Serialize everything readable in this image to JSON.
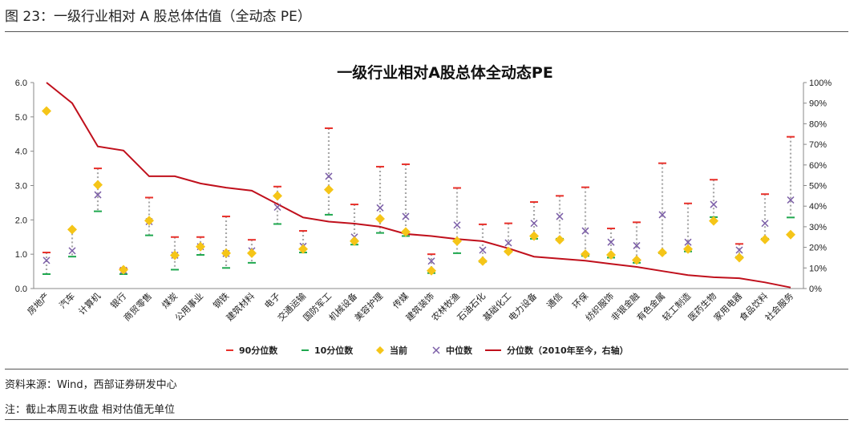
{
  "figure": {
    "label": "图 23：一级行业相对 A 股总体估值（全动态 PE）",
    "source": "资料来源：Wind，西部证券研发中心",
    "note": "注：截止本周五收盘 相对估值无单位"
  },
  "colors": {
    "p90": "#e8302a",
    "p10": "#1fa84f",
    "current": "#f5c518",
    "median": "#7b5ea7",
    "percentile_line": "#c0101c",
    "whisker": "#a8a8a8"
  },
  "chart_data": {
    "type": "scatter",
    "title": "一级行业相对A股总体全动态PE",
    "categories": [
      "房地产",
      "汽车",
      "计算机",
      "银行",
      "商贸零售",
      "煤炭",
      "公用事业",
      "钢铁",
      "建筑材料",
      "电子",
      "交通运输",
      "国防军工",
      "机械设备",
      "美容护理",
      "传媒",
      "建筑装饰",
      "农林牧渔",
      "石油石化",
      "基础化工",
      "电力设备",
      "通信",
      "环保",
      "纺织服饰",
      "非银金融",
      "有色金属",
      "轻工制造",
      "医药生物",
      "家用电器",
      "食品饮料",
      "社会服务"
    ],
    "y_left": {
      "min": 0,
      "max": 6,
      "ticks": [
        "0.0",
        "1.0",
        "2.0",
        "3.0",
        "4.0",
        "5.0",
        "6.0"
      ]
    },
    "y_right": {
      "min": 0,
      "max": 100,
      "ticks": [
        "0%",
        "10%",
        "20%",
        "30%",
        "40%",
        "50%",
        "60%",
        "70%",
        "80%",
        "90%",
        "100%"
      ]
    },
    "legend_position": "bottom",
    "series": [
      {
        "name": "90分位数",
        "axis": "left",
        "marker": "dash",
        "values": [
          1.05,
          1.72,
          3.5,
          0.58,
          2.65,
          1.5,
          1.5,
          2.1,
          1.42,
          2.97,
          1.68,
          4.67,
          2.45,
          3.55,
          3.62,
          1.0,
          2.93,
          1.87,
          1.9,
          2.52,
          2.7,
          2.95,
          1.75,
          1.93,
          3.65,
          2.48,
          3.17,
          1.3,
          2.75,
          4.42
        ]
      },
      {
        "name": "10分位数",
        "axis": "left",
        "marker": "dash",
        "values": [
          0.42,
          0.93,
          2.25,
          0.42,
          1.55,
          0.55,
          0.98,
          0.6,
          0.75,
          1.88,
          1.05,
          2.15,
          1.28,
          1.62,
          1.53,
          0.45,
          1.03,
          0.78,
          1.07,
          1.45,
          1.45,
          0.95,
          0.9,
          0.75,
          1.03,
          1.08,
          2.08,
          0.92,
          1.45,
          2.07
        ]
      },
      {
        "name": "当前",
        "axis": "left",
        "marker": "diamond",
        "values": [
          5.17,
          1.72,
          3.02,
          0.55,
          1.98,
          0.97,
          1.22,
          1.03,
          1.03,
          2.7,
          1.15,
          2.88,
          1.38,
          2.03,
          1.65,
          0.52,
          1.38,
          0.8,
          1.08,
          1.53,
          1.42,
          1.0,
          0.98,
          0.83,
          1.05,
          1.15,
          1.97,
          0.9,
          1.43,
          1.57
        ]
      },
      {
        "name": "中位数",
        "axis": "left",
        "marker": "cross",
        "values": [
          0.82,
          1.1,
          2.73,
          0.53,
          1.95,
          0.97,
          1.22,
          1.02,
          1.1,
          2.37,
          1.23,
          3.27,
          1.5,
          2.35,
          2.1,
          0.8,
          1.85,
          1.12,
          1.33,
          1.9,
          2.1,
          1.68,
          1.35,
          1.25,
          2.15,
          1.35,
          2.45,
          1.12,
          1.9,
          2.58
        ]
      },
      {
        "name": "分位数（2010年至今，右轴）",
        "axis": "right",
        "marker": "line",
        "values": [
          100,
          90,
          69,
          67,
          54.5,
          54.5,
          51,
          49,
          47.5,
          41,
          34.5,
          32.5,
          31.5,
          30,
          26.5,
          25.5,
          24,
          23,
          19.5,
          15.5,
          14.5,
          13.5,
          12,
          10.5,
          8.5,
          6.5,
          5.5,
          5,
          3,
          0.5
        ]
      }
    ]
  }
}
